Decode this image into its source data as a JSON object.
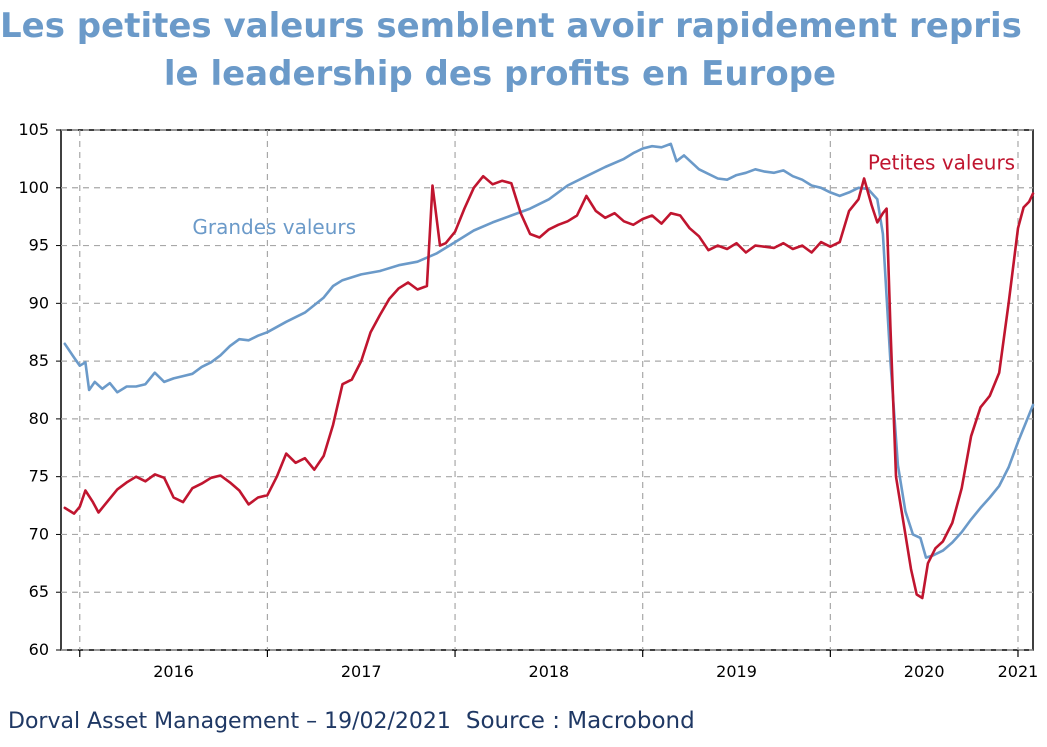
{
  "title": {
    "line1": "Les petites valeurs semblent avoir rapidement repris",
    "line2": "le leadership des profits en Europe"
  },
  "footer": {
    "credit": "Dorval Asset Management – 19/02/2021",
    "source": "Source : Macrobond"
  },
  "chart_data": {
    "type": "line",
    "title": "Les petites valeurs semblent avoir rapidement repris le leadership des profits en Europe",
    "xlabel": "",
    "ylabel": "",
    "ylim": [
      60,
      105
    ],
    "xlim": [
      2015.9,
      2021.08
    ],
    "grid": true,
    "y_ticks": [
      "60",
      "65",
      "70",
      "75",
      "80",
      "85",
      "90",
      "95",
      "100",
      "105"
    ],
    "x_ticks": [
      {
        "label": "2016",
        "x": 2016.5
      },
      {
        "label": "2017",
        "x": 2017.5
      },
      {
        "label": "2018",
        "x": 2018.5
      },
      {
        "label": "2019",
        "x": 2019.5
      },
      {
        "label": "2020",
        "x": 2020.5
      },
      {
        "label": "2021",
        "x": 2021.0
      }
    ],
    "series": [
      {
        "name": "Grandes valeurs",
        "color": "#6b9ac9",
        "label_anchor": {
          "x": 2016.6,
          "y": 96.0
        },
        "points": [
          [
            2015.92,
            86.5
          ],
          [
            2015.97,
            85.3
          ],
          [
            2016.0,
            84.6
          ],
          [
            2016.03,
            84.9
          ],
          [
            2016.05,
            82.5
          ],
          [
            2016.08,
            83.2
          ],
          [
            2016.12,
            82.6
          ],
          [
            2016.16,
            83.1
          ],
          [
            2016.2,
            82.3
          ],
          [
            2016.25,
            82.8
          ],
          [
            2016.3,
            82.8
          ],
          [
            2016.35,
            83.0
          ],
          [
            2016.4,
            84.0
          ],
          [
            2016.45,
            83.2
          ],
          [
            2016.5,
            83.5
          ],
          [
            2016.55,
            83.7
          ],
          [
            2016.6,
            83.9
          ],
          [
            2016.65,
            84.5
          ],
          [
            2016.7,
            84.9
          ],
          [
            2016.75,
            85.5
          ],
          [
            2016.8,
            86.3
          ],
          [
            2016.85,
            86.9
          ],
          [
            2016.9,
            86.8
          ],
          [
            2016.95,
            87.2
          ],
          [
            2017.0,
            87.5
          ],
          [
            2017.1,
            88.4
          ],
          [
            2017.2,
            89.2
          ],
          [
            2017.3,
            90.5
          ],
          [
            2017.35,
            91.5
          ],
          [
            2017.4,
            92.0
          ],
          [
            2017.5,
            92.5
          ],
          [
            2017.6,
            92.8
          ],
          [
            2017.7,
            93.3
          ],
          [
            2017.8,
            93.6
          ],
          [
            2017.9,
            94.3
          ],
          [
            2018.0,
            95.3
          ],
          [
            2018.1,
            96.3
          ],
          [
            2018.2,
            97.0
          ],
          [
            2018.3,
            97.6
          ],
          [
            2018.4,
            98.2
          ],
          [
            2018.5,
            99.0
          ],
          [
            2018.6,
            100.2
          ],
          [
            2018.7,
            101.0
          ],
          [
            2018.8,
            101.8
          ],
          [
            2018.9,
            102.5
          ],
          [
            2018.95,
            103.0
          ],
          [
            2019.0,
            103.4
          ],
          [
            2019.05,
            103.6
          ],
          [
            2019.1,
            103.5
          ],
          [
            2019.15,
            103.8
          ],
          [
            2019.18,
            102.3
          ],
          [
            2019.22,
            102.8
          ],
          [
            2019.3,
            101.6
          ],
          [
            2019.4,
            100.8
          ],
          [
            2019.45,
            100.7
          ],
          [
            2019.5,
            101.1
          ],
          [
            2019.55,
            101.3
          ],
          [
            2019.6,
            101.6
          ],
          [
            2019.65,
            101.4
          ],
          [
            2019.7,
            101.3
          ],
          [
            2019.75,
            101.5
          ],
          [
            2019.8,
            101.0
          ],
          [
            2019.85,
            100.7
          ],
          [
            2019.9,
            100.2
          ],
          [
            2019.95,
            100.0
          ],
          [
            2020.0,
            99.6
          ],
          [
            2020.05,
            99.3
          ],
          [
            2020.1,
            99.6
          ],
          [
            2020.15,
            100.0
          ],
          [
            2020.2,
            99.9
          ],
          [
            2020.25,
            99.0
          ],
          [
            2020.28,
            96.0
          ],
          [
            2020.32,
            85.0
          ],
          [
            2020.36,
            76.0
          ],
          [
            2020.4,
            72.0
          ],
          [
            2020.44,
            70.0
          ],
          [
            2020.48,
            69.7
          ],
          [
            2020.51,
            68.0
          ],
          [
            2020.55,
            68.2
          ],
          [
            2020.6,
            68.6
          ],
          [
            2020.65,
            69.3
          ],
          [
            2020.7,
            70.2
          ],
          [
            2020.75,
            71.3
          ],
          [
            2020.8,
            72.3
          ],
          [
            2020.85,
            73.2
          ],
          [
            2020.9,
            74.2
          ],
          [
            2020.95,
            75.8
          ],
          [
            2021.0,
            78.0
          ],
          [
            2021.05,
            80.0
          ],
          [
            2021.08,
            81.2
          ]
        ]
      },
      {
        "name": "Petites valeurs",
        "color": "#c0152f",
        "label_anchor": {
          "x": 2020.2,
          "y": 101.6
        },
        "points": [
          [
            2015.92,
            72.3
          ],
          [
            2015.97,
            71.8
          ],
          [
            2016.0,
            72.4
          ],
          [
            2016.03,
            73.8
          ],
          [
            2016.07,
            72.8
          ],
          [
            2016.1,
            71.9
          ],
          [
            2016.15,
            72.9
          ],
          [
            2016.2,
            73.9
          ],
          [
            2016.25,
            74.5
          ],
          [
            2016.3,
            75.0
          ],
          [
            2016.35,
            74.6
          ],
          [
            2016.4,
            75.2
          ],
          [
            2016.45,
            74.9
          ],
          [
            2016.5,
            73.2
          ],
          [
            2016.55,
            72.8
          ],
          [
            2016.6,
            74.0
          ],
          [
            2016.65,
            74.4
          ],
          [
            2016.7,
            74.9
          ],
          [
            2016.75,
            75.1
          ],
          [
            2016.8,
            74.5
          ],
          [
            2016.85,
            73.8
          ],
          [
            2016.9,
            72.6
          ],
          [
            2016.95,
            73.2
          ],
          [
            2017.0,
            73.4
          ],
          [
            2017.05,
            75.0
          ],
          [
            2017.1,
            77.0
          ],
          [
            2017.15,
            76.2
          ],
          [
            2017.2,
            76.6
          ],
          [
            2017.25,
            75.6
          ],
          [
            2017.3,
            76.8
          ],
          [
            2017.35,
            79.5
          ],
          [
            2017.4,
            83.0
          ],
          [
            2017.45,
            83.4
          ],
          [
            2017.5,
            85.0
          ],
          [
            2017.55,
            87.5
          ],
          [
            2017.6,
            89.0
          ],
          [
            2017.65,
            90.4
          ],
          [
            2017.7,
            91.3
          ],
          [
            2017.75,
            91.8
          ],
          [
            2017.8,
            91.2
          ],
          [
            2017.85,
            91.5
          ],
          [
            2017.88,
            100.2
          ],
          [
            2017.92,
            95.0
          ],
          [
            2017.95,
            95.2
          ],
          [
            2018.0,
            96.2
          ],
          [
            2018.05,
            98.2
          ],
          [
            2018.1,
            100.0
          ],
          [
            2018.15,
            101.0
          ],
          [
            2018.2,
            100.3
          ],
          [
            2018.25,
            100.6
          ],
          [
            2018.3,
            100.4
          ],
          [
            2018.35,
            97.8
          ],
          [
            2018.4,
            96.0
          ],
          [
            2018.45,
            95.7
          ],
          [
            2018.5,
            96.4
          ],
          [
            2018.55,
            96.8
          ],
          [
            2018.6,
            97.1
          ],
          [
            2018.65,
            97.6
          ],
          [
            2018.7,
            99.3
          ],
          [
            2018.75,
            98.0
          ],
          [
            2018.8,
            97.4
          ],
          [
            2018.85,
            97.8
          ],
          [
            2018.9,
            97.1
          ],
          [
            2018.95,
            96.8
          ],
          [
            2019.0,
            97.3
          ],
          [
            2019.05,
            97.6
          ],
          [
            2019.1,
            96.9
          ],
          [
            2019.15,
            97.8
          ],
          [
            2019.2,
            97.6
          ],
          [
            2019.25,
            96.5
          ],
          [
            2019.3,
            95.8
          ],
          [
            2019.35,
            94.6
          ],
          [
            2019.4,
            95.0
          ],
          [
            2019.45,
            94.7
          ],
          [
            2019.5,
            95.2
          ],
          [
            2019.55,
            94.4
          ],
          [
            2019.6,
            95.0
          ],
          [
            2019.65,
            94.9
          ],
          [
            2019.7,
            94.8
          ],
          [
            2019.75,
            95.2
          ],
          [
            2019.8,
            94.7
          ],
          [
            2019.85,
            95.0
          ],
          [
            2019.9,
            94.4
          ],
          [
            2019.95,
            95.3
          ],
          [
            2020.0,
            94.9
          ],
          [
            2020.05,
            95.3
          ],
          [
            2020.1,
            98.0
          ],
          [
            2020.15,
            99.0
          ],
          [
            2020.18,
            100.8
          ],
          [
            2020.22,
            98.5
          ],
          [
            2020.25,
            97.0
          ],
          [
            2020.28,
            97.8
          ],
          [
            2020.3,
            98.2
          ],
          [
            2020.32,
            88.0
          ],
          [
            2020.35,
            75.0
          ],
          [
            2020.4,
            70.0
          ],
          [
            2020.43,
            67.0
          ],
          [
            2020.46,
            64.8
          ],
          [
            2020.49,
            64.5
          ],
          [
            2020.52,
            67.5
          ],
          [
            2020.56,
            68.8
          ],
          [
            2020.6,
            69.4
          ],
          [
            2020.65,
            71.0
          ],
          [
            2020.7,
            74.0
          ],
          [
            2020.75,
            78.5
          ],
          [
            2020.8,
            81.0
          ],
          [
            2020.85,
            82.0
          ],
          [
            2020.9,
            84.0
          ],
          [
            2020.95,
            90.0
          ],
          [
            2021.0,
            96.5
          ],
          [
            2021.03,
            98.3
          ],
          [
            2021.06,
            98.8
          ],
          [
            2021.08,
            99.5
          ]
        ]
      }
    ]
  }
}
